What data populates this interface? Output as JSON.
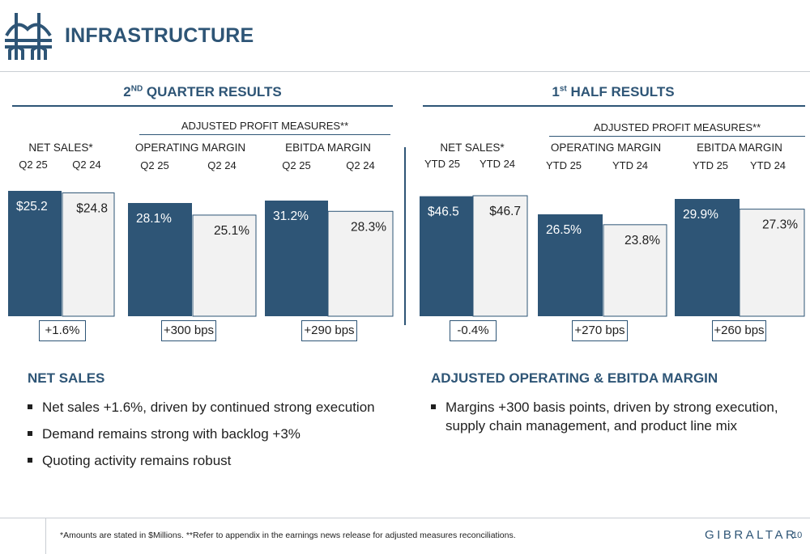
{
  "header": {
    "title": "INFRASTRUCTURE",
    "logo_icon": "bridge-icon"
  },
  "sections": {
    "q2": {
      "title_main": "2",
      "title_sup": "ND",
      "title_rest": " QUARTER RESULTS"
    },
    "half": {
      "title_main": "1",
      "title_sup": "st",
      "title_rest": " HALF RESULTS"
    }
  },
  "adjusted_label": "ADJUSTED PROFIT MEASURES**",
  "colors": {
    "current": "#2e5576",
    "prior": "#f2f2f2",
    "prior_border": "#2e5576",
    "accent": "#2e5576"
  },
  "chart_data": [
    {
      "type": "bar",
      "group": "NET SALES*",
      "section": "2ND QUARTER RESULTS",
      "categories": [
        "Q2 25",
        "Q2 24"
      ],
      "values": [
        25.2,
        24.8
      ],
      "labels": [
        "$25.2",
        "$24.8"
      ],
      "change": "+1.6%",
      "ylim": [
        0,
        25.2
      ]
    },
    {
      "type": "bar",
      "group": "OPERATING MARGIN",
      "section": "2ND QUARTER RESULTS",
      "categories": [
        "Q2 25",
        "Q2 24"
      ],
      "values": [
        28.1,
        25.1
      ],
      "labels": [
        "28.1%",
        "25.1%"
      ],
      "change": "+300 bps"
    },
    {
      "type": "bar",
      "group": "EBITDA MARGIN",
      "section": "2ND QUARTER RESULTS",
      "categories": [
        "Q2 25",
        "Q2 24"
      ],
      "values": [
        31.2,
        28.3
      ],
      "labels": [
        "31.2%",
        "28.3%"
      ],
      "change": "+290 bps"
    },
    {
      "type": "bar",
      "group": "NET SALES*",
      "section": "1st HALF RESULTS",
      "categories": [
        "YTD 25",
        "YTD 24"
      ],
      "values": [
        46.5,
        46.7
      ],
      "labels": [
        "$46.5",
        "$46.7"
      ],
      "change": "-0.4%"
    },
    {
      "type": "bar",
      "group": "OPERATING MARGIN",
      "section": "1st HALF RESULTS",
      "categories": [
        "YTD 25",
        "YTD 24"
      ],
      "values": [
        26.5,
        23.8
      ],
      "labels": [
        "26.5%",
        "23.8%"
      ],
      "change": "+270 bps"
    },
    {
      "type": "bar",
      "group": "EBITDA MARGIN",
      "section": "1st HALF RESULTS",
      "categories": [
        "YTD 25",
        "YTD 24"
      ],
      "values": [
        29.9,
        27.3
      ],
      "labels": [
        "29.9%",
        "27.3%"
      ],
      "change": "+260 bps"
    }
  ],
  "net_sales": {
    "heading": "NET SALES",
    "bullets": [
      "Net sales +1.6%, driven by continued strong execution",
      "Demand remains strong with backlog +3%",
      "Quoting activity remains robust"
    ]
  },
  "margins": {
    "heading": "ADJUSTED OPERATING & EBITDA MARGIN",
    "bullets": [
      "Margins +300 basis points, driven by strong execution, supply chain management, and product line mix"
    ]
  },
  "footer": {
    "note": "*Amounts are stated in $Millions.  **Refer to appendix in the earnings news release for adjusted measures reconciliations.",
    "brand": "GIBRALTAR",
    "page": "10"
  }
}
